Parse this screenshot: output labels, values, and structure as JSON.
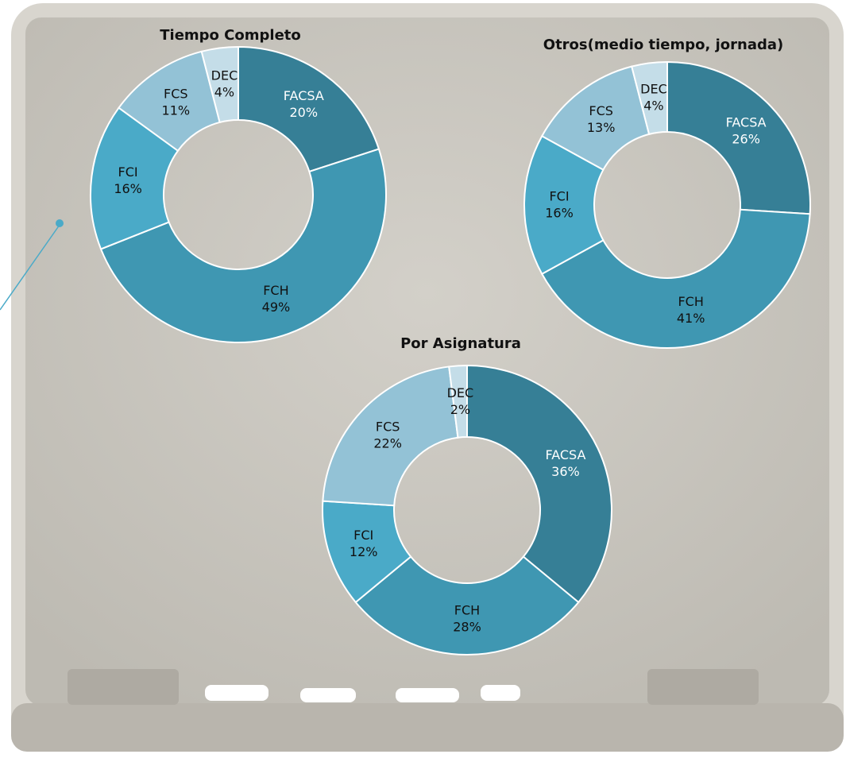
{
  "chart_data": [
    {
      "type": "donut",
      "title": "Tiempo Completo",
      "categories": [
        "FACSA",
        "FCH",
        "FCI",
        "FCS",
        "DEC"
      ],
      "values": [
        20,
        49,
        16,
        11,
        4
      ],
      "value_labels": [
        "20%",
        "49%",
        "16%",
        "11%",
        "4%"
      ],
      "colors": [
        "#367f96",
        "#3f97b2",
        "#4aaac8",
        "#93c2d6",
        "#c4dde8"
      ]
    },
    {
      "type": "donut",
      "title": "Otros(medio tiempo, jornada)",
      "categories": [
        "FACSA",
        "FCH",
        "FCI",
        "FCS",
        "DEC"
      ],
      "values": [
        26,
        41,
        16,
        13,
        4
      ],
      "value_labels": [
        "26%",
        "41%",
        "16%",
        "13%",
        "4%"
      ],
      "colors": [
        "#367f96",
        "#3f97b2",
        "#4aaac8",
        "#93c2d6",
        "#c4dde8"
      ]
    },
    {
      "type": "donut",
      "title": "Por Asignatura",
      "categories": [
        "FACSA",
        "FCH",
        "FCI",
        "FCS",
        "DEC"
      ],
      "values": [
        36,
        28,
        12,
        22,
        2
      ],
      "value_labels": [
        "36%",
        "28%",
        "12%",
        "22%",
        "2%"
      ],
      "colors": [
        "#367f96",
        "#3f97b2",
        "#4aaac8",
        "#93c2d6",
        "#c4dde8"
      ]
    }
  ]
}
